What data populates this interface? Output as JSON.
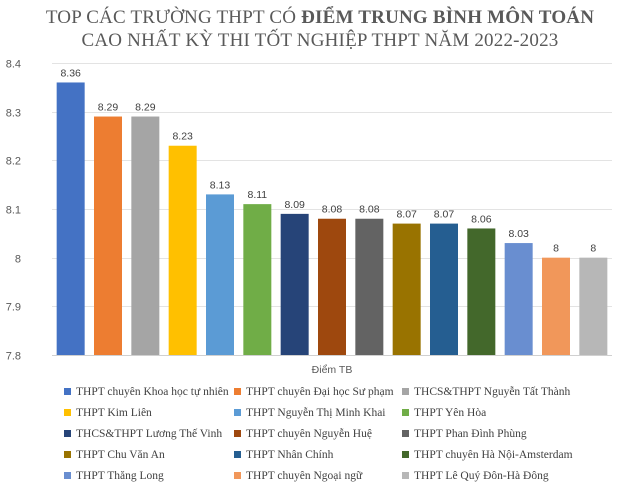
{
  "title": {
    "line1_prefix": "TOP CÁC TRƯỜNG THPT CÓ ",
    "line1_bold": "ĐIỂM TRUNG BÌNH MÔN TOÁN",
    "line2": "CAO NHẤT KỲ THI TỐT NGHIỆP THPT NĂM 2022-2023"
  },
  "chart_data": {
    "type": "bar",
    "title": "TOP CÁC TRƯỜNG THPT CÓ ĐIỂM TRUNG BÌNH MÔN TOÁN CAO NHẤT KỲ THI TỐT NGHIỆP THPT NĂM 2022-2023",
    "xlabel": "Điểm TB",
    "ylabel": "",
    "ylim": [
      7.8,
      8.4
    ],
    "yticks": [
      "7.8",
      "7.9",
      "8",
      "8.1",
      "8.2",
      "8.3",
      "8.4"
    ],
    "grid": true,
    "legend_position": "bottom",
    "series": [
      {
        "name": "THPT chuyên Khoa học tự nhiên",
        "value": 8.36,
        "label": "8.36",
        "color": "#4472C4"
      },
      {
        "name": "THPT chuyên Đại học Sư phạm",
        "value": 8.29,
        "label": "8.29",
        "color": "#ED7D31"
      },
      {
        "name": "THCS&THPT Nguyễn Tất Thành",
        "value": 8.29,
        "label": "8.29",
        "color": "#A5A5A5"
      },
      {
        "name": "THPT Kim Liên",
        "value": 8.23,
        "label": "8.23",
        "color": "#FFC000"
      },
      {
        "name": "THPT Nguyễn Thị Minh Khai",
        "value": 8.13,
        "label": "8.13",
        "color": "#5B9BD5"
      },
      {
        "name": "THPT Yên Hòa",
        "value": 8.11,
        "label": "8.11",
        "color": "#70AD47"
      },
      {
        "name": "THCS&THPT Lương Thế Vinh",
        "value": 8.09,
        "label": "8.09",
        "color": "#264478"
      },
      {
        "name": "THPT chuyên Nguyễn Huệ",
        "value": 8.08,
        "label": "8.08",
        "color": "#9E480E"
      },
      {
        "name": "THPT Phan Đình Phùng",
        "value": 8.08,
        "label": "8.08",
        "color": "#636363"
      },
      {
        "name": "THPT Chu Văn An",
        "value": 8.07,
        "label": "8.07",
        "color": "#997300"
      },
      {
        "name": "THPT Nhân Chính",
        "value": 8.07,
        "label": "8.07",
        "color": "#255E91"
      },
      {
        "name": "THPT chuyên Hà Nội-Amsterdam",
        "value": 8.06,
        "label": "8.06",
        "color": "#43682B"
      },
      {
        "name": "THPT Thăng Long",
        "value": 8.03,
        "label": "8.03",
        "color": "#698ED0"
      },
      {
        "name": "THPT chuyên Ngoại ngữ",
        "value": 8.0,
        "label": "8",
        "color": "#F1975A"
      },
      {
        "name": "THPT Lê Quý Đôn-Hà Đông",
        "value": 8.0,
        "label": "8",
        "color": "#B7B7B7"
      }
    ]
  }
}
